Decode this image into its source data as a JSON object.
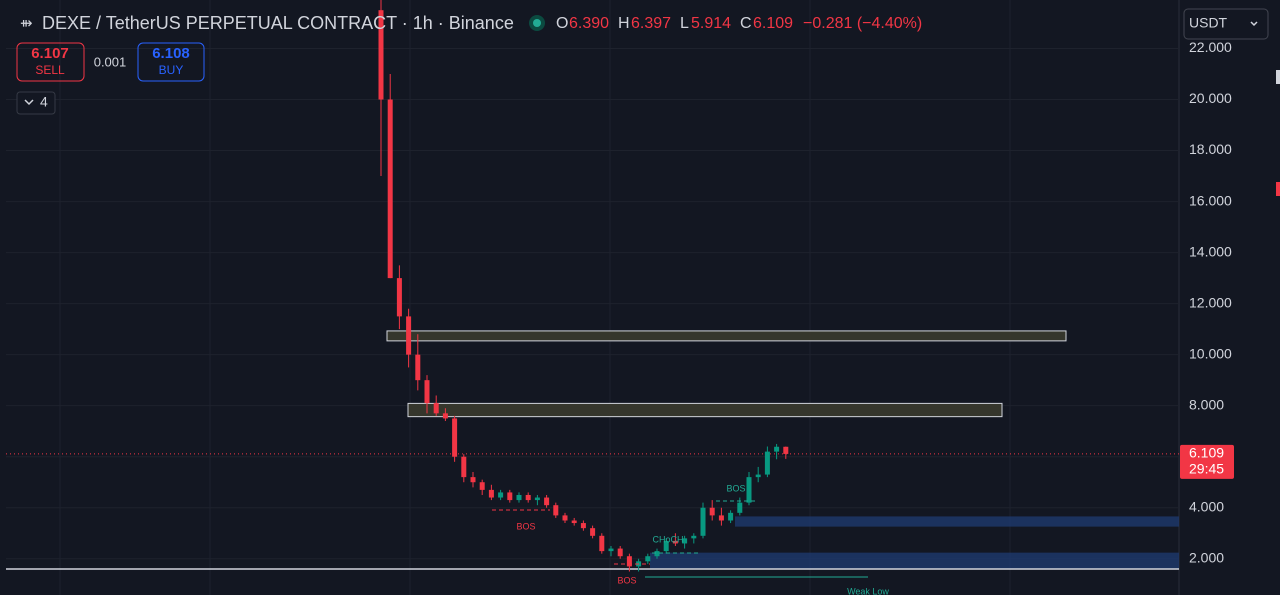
{
  "header": {
    "icon": "⇻",
    "title": "DEXE / TetherUS PERPETUAL CONTRACT · 1h · Binance",
    "o": "O",
    "o_val": "6.390",
    "h": "H",
    "h_val": "6.397",
    "l": "L",
    "l_val": "5.914",
    "c": "C",
    "c_val": "6.109",
    "change": "−0.281 (−4.40%)"
  },
  "trade": {
    "sell_price": "6.107",
    "sell": "SELL",
    "spread": "0.001",
    "buy_price": "6.108",
    "buy": "BUY",
    "indicators": "4",
    "currency": "USDT"
  },
  "chart_data": {
    "type": "candlestick",
    "categories": [
      null,
      null,
      null,
      null,
      null,
      null,
      null,
      null,
      null,
      null,
      null,
      null,
      null,
      null,
      null,
      null,
      null,
      null,
      null,
      null,
      null,
      null,
      null,
      null,
      null,
      null,
      null,
      null,
      null,
      null,
      null,
      null,
      null,
      null,
      null,
      null,
      null,
      null,
      null,
      null,
      null,
      null,
      null,
      null,
      null
    ],
    "open": [
      23.5,
      20,
      13,
      11.5,
      10,
      9.0,
      8.1,
      7.7,
      7.5,
      6.0,
      5.2,
      5.0,
      4.7,
      4.4,
      4.6,
      4.3,
      4.5,
      4.3,
      4.4,
      4.1,
      3.7,
      3.5,
      3.4,
      3.2,
      2.9,
      2.3,
      2.4,
      2.1,
      1.7,
      1.9,
      2.1,
      2.3,
      2.7,
      2.6,
      2.8,
      2.9,
      4.0,
      3.7,
      3.5,
      3.8,
      4.2,
      5.2,
      5.3,
      6.2,
      6.39
    ],
    "high": [
      24,
      21,
      13.5,
      11.8,
      10.8,
      9.2,
      8.4,
      7.9,
      7.6,
      6.1,
      5.4,
      5.1,
      4.9,
      4.7,
      4.7,
      4.6,
      4.6,
      4.5,
      4.5,
      4.2,
      3.8,
      3.6,
      3.5,
      3.3,
      3.0,
      2.5,
      2.5,
      2.2,
      2.0,
      2.2,
      2.4,
      2.8,
      3.0,
      2.9,
      3.0,
      4.2,
      4.3,
      4.0,
      3.9,
      4.4,
      5.4,
      5.6,
      6.4,
      6.5,
      6.397
    ],
    "low": [
      17,
      13,
      11,
      9.5,
      8.6,
      7.7,
      7.6,
      7.4,
      5.8,
      5.0,
      4.8,
      4.5,
      4.3,
      4.3,
      4.2,
      4.2,
      4.2,
      4.1,
      4.0,
      3.6,
      3.4,
      3.3,
      3.1,
      2.8,
      2.2,
      2.1,
      2.0,
      1.5,
      1.5,
      1.8,
      2.0,
      2.2,
      2.5,
      2.4,
      2.6,
      2.8,
      3.5,
      3.3,
      3.4,
      3.7,
      4.1,
      5.0,
      5.2,
      5.9,
      5.914
    ],
    "close": [
      20,
      13,
      11.5,
      10,
      9.0,
      8.1,
      7.7,
      7.5,
      6.0,
      5.2,
      5.0,
      4.7,
      4.4,
      4.6,
      4.3,
      4.5,
      4.3,
      4.4,
      4.1,
      3.7,
      3.5,
      3.4,
      3.2,
      2.9,
      2.3,
      2.4,
      2.1,
      1.7,
      1.9,
      2.1,
      2.3,
      2.7,
      2.6,
      2.8,
      2.9,
      4.0,
      3.7,
      3.5,
      3.8,
      4.2,
      5.2,
      5.3,
      6.2,
      6.39,
      6.109
    ],
    "up_color": "#089981",
    "down_color": "#f23645",
    "ylim": [
      0.58,
      23.9
    ],
    "yticks": [
      {
        "value": 2,
        "label": "2.000"
      },
      {
        "value": 4,
        "label": "4.000"
      },
      {
        "value": 6,
        "label": "6.000"
      },
      {
        "value": 8,
        "label": "8.000"
      },
      {
        "value": 10,
        "label": "10.000"
      },
      {
        "value": 12,
        "label": "12.000"
      },
      {
        "value": 14,
        "label": "14.000"
      },
      {
        "value": 16,
        "label": "16.000"
      },
      {
        "value": 18,
        "label": "18.000"
      },
      {
        "value": 20,
        "label": "20.000"
      },
      {
        "value": 22,
        "label": "22.000"
      }
    ],
    "grid": true,
    "last_price": {
      "value": 6.109,
      "label": "6.109"
    },
    "countdown": "29:45",
    "zones": [
      {
        "from": 10.54,
        "to": 10.93,
        "color": "#3a3a2e"
      },
      {
        "from": 7.57,
        "to": 8.09,
        "color": "#3a3a2e"
      },
      {
        "from": 3.26,
        "to": 3.66,
        "color": "#1e3a6e"
      },
      {
        "from": 1.6,
        "to": 2.24,
        "color": "#1e3a6e"
      }
    ],
    "support_line": 1.6,
    "annotations": [
      {
        "text": "BOS"
      },
      {
        "text": "BOS"
      },
      {
        "text": "CHoCH"
      },
      {
        "text": "BOS"
      },
      {
        "text": "Weak Low"
      }
    ]
  }
}
